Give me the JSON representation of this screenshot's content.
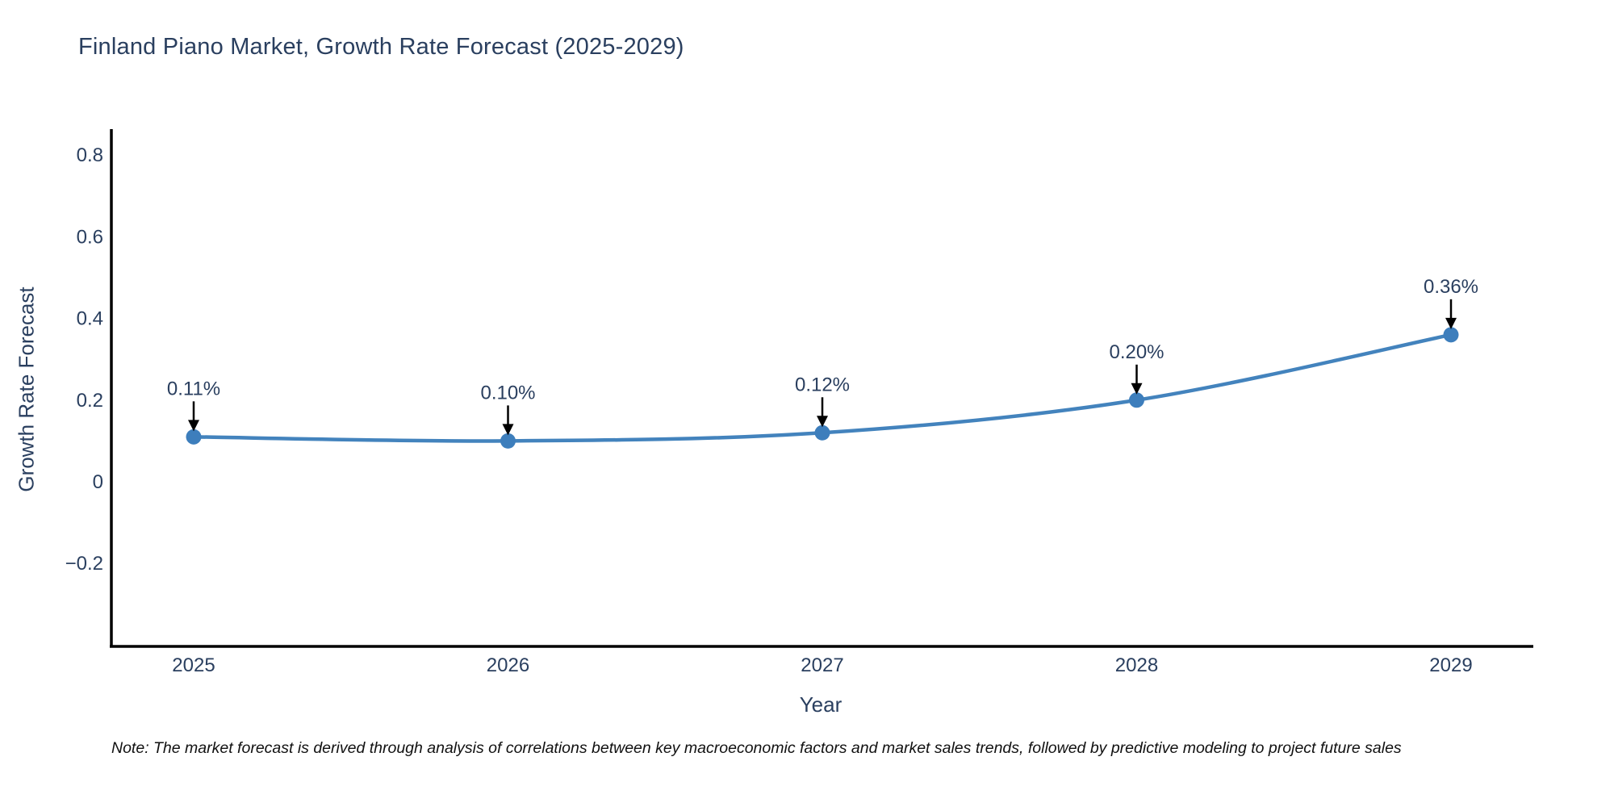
{
  "title": "Finland Piano Market, Growth Rate Forecast (2025-2029)",
  "note": "Note: The market forecast is derived through analysis of correlations between key macroeconomic factors and market sales trends, followed by predictive modeling to project future sales",
  "chart_data": {
    "type": "line",
    "title": "Finland Piano Market, Growth Rate Forecast (2025-2029)",
    "xlabel": "Year",
    "ylabel": "Growth Rate Forecast",
    "categories": [
      "2025",
      "2026",
      "2027",
      "2028",
      "2029"
    ],
    "series": [
      {
        "name": "Growth Rate Forecast",
        "values": [
          0.11,
          0.1,
          0.12,
          0.2,
          0.36
        ]
      }
    ],
    "point_labels": [
      "0.11%",
      "0.10%",
      "0.12%",
      "0.20%",
      "0.36%"
    ],
    "y_tick_labels": [
      "0.8",
      "0.6",
      "0.4",
      "0.2",
      "0",
      "−0.2"
    ],
    "y_tick_values": [
      0.8,
      0.6,
      0.4,
      0.2,
      0,
      -0.2
    ],
    "ylim": [
      -0.4,
      0.86
    ],
    "grid": false,
    "legend_position": "none",
    "line_color": "#4383bd",
    "marker_color": "#3d7ebc",
    "axis_color": "#000000",
    "text_color": "#2a3f5f",
    "annotation_color": "#2a3f5f",
    "arrow_color": "#000000"
  }
}
